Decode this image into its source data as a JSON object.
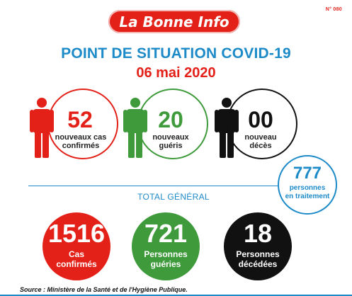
{
  "issue_number": "N° 080",
  "brand": "La Bonne Info",
  "title": "POINT DE SITUATION COVID-19",
  "date": "06 mai 2020",
  "daily": {
    "cases": {
      "value": "52",
      "label_line1": "nouveaux cas",
      "label_line2": "confirmés",
      "color": "#e32119"
    },
    "recovered": {
      "value": "20",
      "label_line1": "nouveaux",
      "label_line2": "guéris",
      "color": "#3e9a3a"
    },
    "deaths": {
      "value": "00",
      "label_line1": "nouveau",
      "label_line2": "décès",
      "color": "#111111"
    }
  },
  "in_treatment": {
    "value": "777",
    "label_line1": "personnes",
    "label_line2": "en traitement",
    "color": "#1e8bc9"
  },
  "total": {
    "title": "TOTAL GÉNÉRAL",
    "cases": {
      "value": "1516",
      "label_line1": "Cas",
      "label_line2": "confirmés",
      "color": "#e32119"
    },
    "recovered": {
      "value": "721",
      "label_line1": "Personnes",
      "label_line2": "guéries",
      "color": "#3e9a3a"
    },
    "deaths": {
      "value": "18",
      "label_line1": "Personnes",
      "label_line2": "décédées",
      "color": "#111111"
    }
  },
  "source": "Source : Ministère de la Santé et de l'Hygiène Publique."
}
